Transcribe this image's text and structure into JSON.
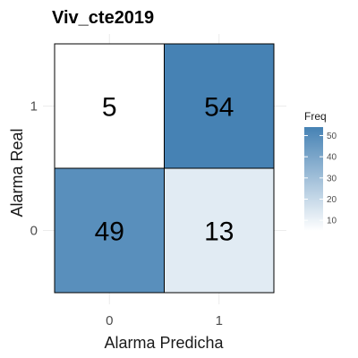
{
  "chart_data": {
    "type": "heatmap",
    "title": "Viv_cte2019",
    "xlabel": "Alarma Predicha",
    "ylabel": "Alarma Real",
    "x_categories": [
      "0",
      "1"
    ],
    "y_categories": [
      "0",
      "1"
    ],
    "cells": [
      {
        "x": "0",
        "y": "1",
        "value": 5
      },
      {
        "x": "1",
        "y": "1",
        "value": 54
      },
      {
        "x": "0",
        "y": "0",
        "value": 49
      },
      {
        "x": "1",
        "y": "0",
        "value": 13
      }
    ],
    "legend": {
      "title": "Freq",
      "ticks": [
        10,
        20,
        30,
        40,
        50
      ],
      "range": [
        5,
        54
      ],
      "low_color": "#ffffff",
      "high_color": "#4682b4"
    },
    "grid": true
  }
}
